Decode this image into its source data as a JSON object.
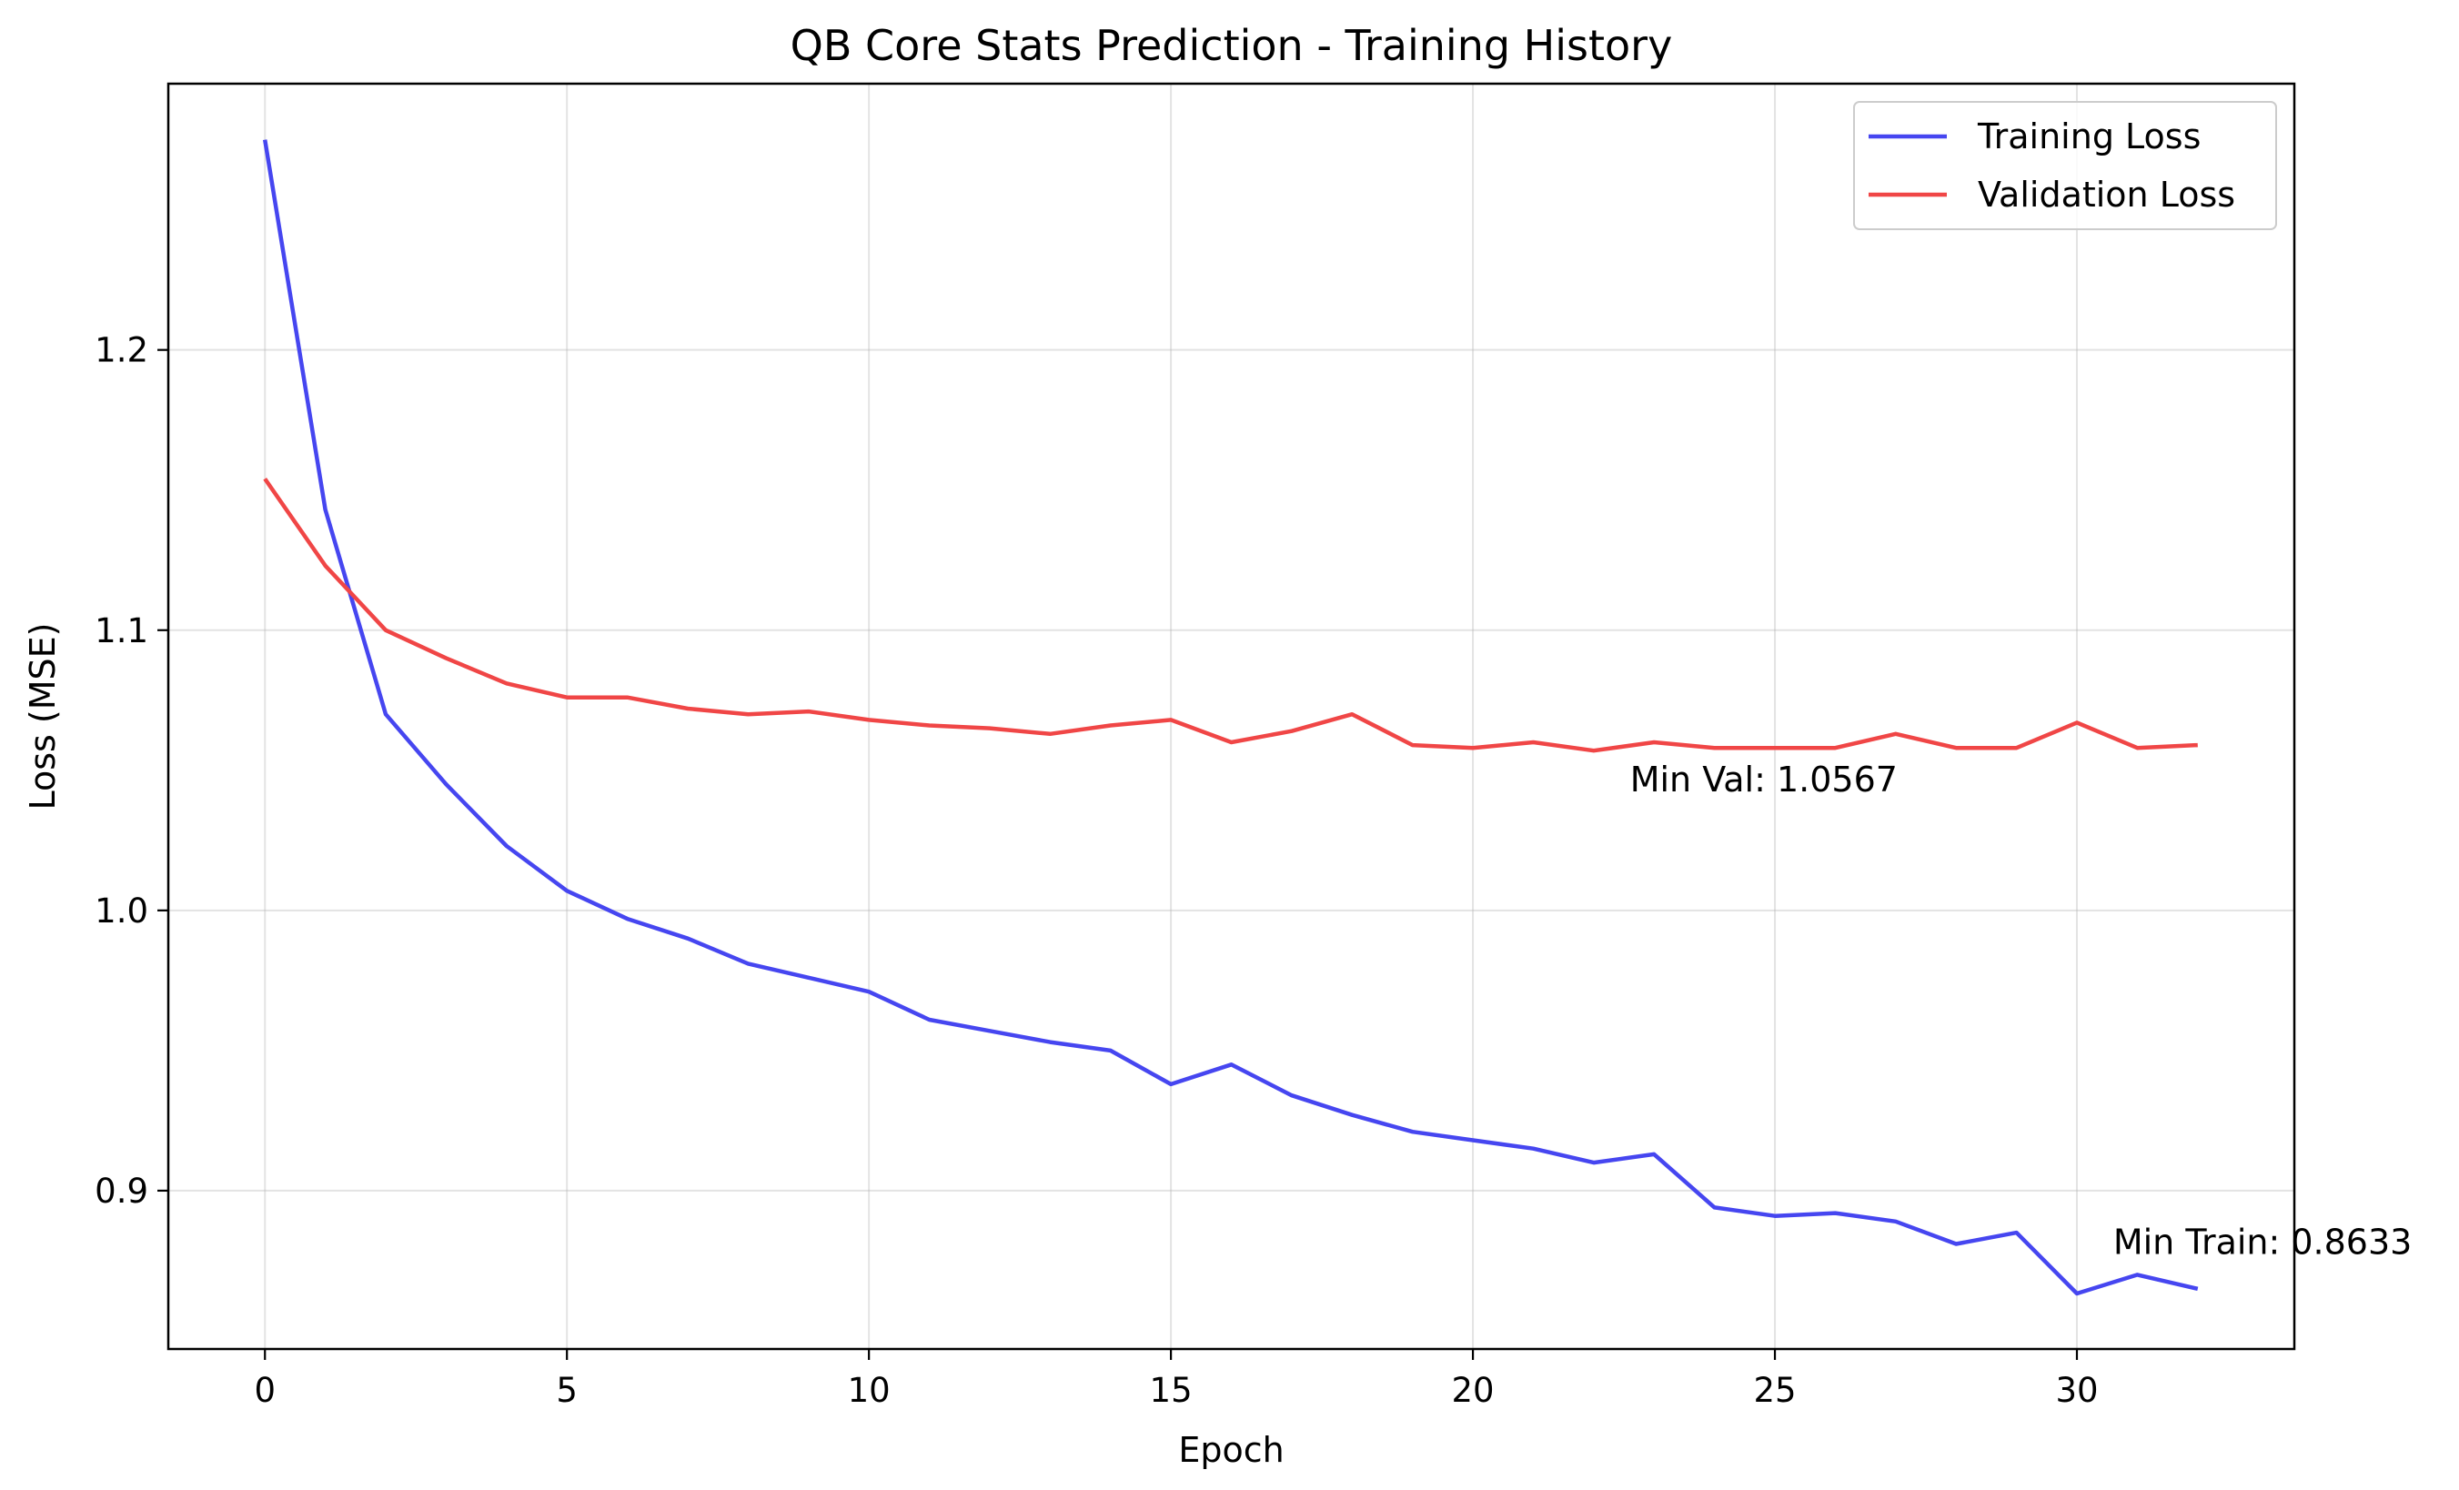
{
  "chart_data": {
    "type": "line",
    "title": "QB Core Stats Prediction - Training History",
    "xlabel": "Epoch",
    "ylabel": "Loss (MSE)",
    "xlim": [
      -1.6,
      33.6
    ],
    "ylim": [
      0.8435,
      1.295
    ],
    "x_ticks": [
      0,
      5,
      10,
      15,
      20,
      25,
      30
    ],
    "y_ticks": [
      0.9,
      1.0,
      1.1,
      1.2
    ],
    "grid": true,
    "legend_position": "top-right",
    "x": [
      0,
      1,
      2,
      3,
      4,
      5,
      6,
      7,
      8,
      9,
      10,
      11,
      12,
      13,
      14,
      15,
      16,
      17,
      18,
      19,
      20,
      21,
      22,
      23,
      24,
      25,
      26,
      27,
      28,
      29,
      30,
      31,
      32
    ],
    "series": [
      {
        "name": "Training Loss",
        "color": "#4646f0",
        "values": [
          1.275,
          1.143,
          1.07,
          1.045,
          1.023,
          1.007,
          0.997,
          0.99,
          0.981,
          0.976,
          0.971,
          0.961,
          0.957,
          0.953,
          0.95,
          0.938,
          0.945,
          0.934,
          0.927,
          0.921,
          0.918,
          0.915,
          0.91,
          0.913,
          0.894,
          0.891,
          0.892,
          0.889,
          0.881,
          0.885,
          0.8633,
          0.87,
          0.865
        ]
      },
      {
        "name": "Validation Loss",
        "color": "#f04646",
        "values": [
          1.154,
          1.123,
          1.1,
          1.09,
          1.081,
          1.076,
          1.076,
          1.072,
          1.07,
          1.071,
          1.068,
          1.066,
          1.065,
          1.063,
          1.066,
          1.068,
          1.06,
          1.064,
          1.07,
          1.059,
          1.058,
          1.06,
          1.057,
          1.06,
          1.058,
          1.058,
          1.058,
          1.063,
          1.058,
          1.058,
          1.067,
          1.058,
          1.059
        ]
      }
    ],
    "annotations": [
      {
        "text": "Min Val: 1.0567",
        "x": 22.6,
        "y": 1.0425
      },
      {
        "text": "Min Train: 0.8633",
        "x": 30.6,
        "y": 0.8775
      }
    ]
  }
}
